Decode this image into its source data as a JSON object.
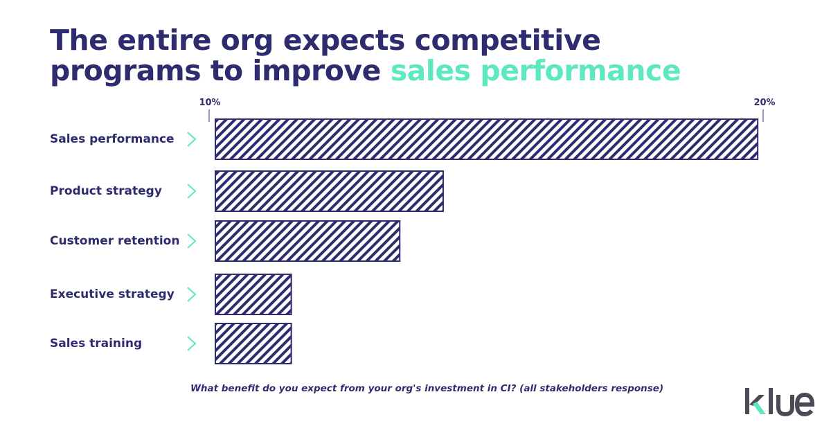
{
  "title": {
    "line1": "The entire org expects competitive",
    "line2_prefix": "programs to improve ",
    "line2_highlight": "sales performance"
  },
  "caption": "What benefit do you expect from your org's investment in CI? (all stakeholders response)",
  "brand": {
    "name": "klue",
    "colors": {
      "primary": "#2e2c6e",
      "accent": "#5ee8c0",
      "logo_gray": "#4a4a55"
    }
  },
  "chart_data": {
    "type": "bar",
    "orientation": "horizontal",
    "categories": [
      "Sales performance",
      "Product strategy",
      "Customer retention",
      "Executive strategy",
      "Sales training"
    ],
    "values": [
      19.9,
      14.1,
      13.3,
      11.3,
      11.3
    ],
    "units": "%",
    "xlim": [
      9.9,
      20
    ],
    "x_ticks": [
      "10%",
      "20%"
    ],
    "bar_fill": "diagonal-hatch",
    "grid": false,
    "legend": "none"
  }
}
